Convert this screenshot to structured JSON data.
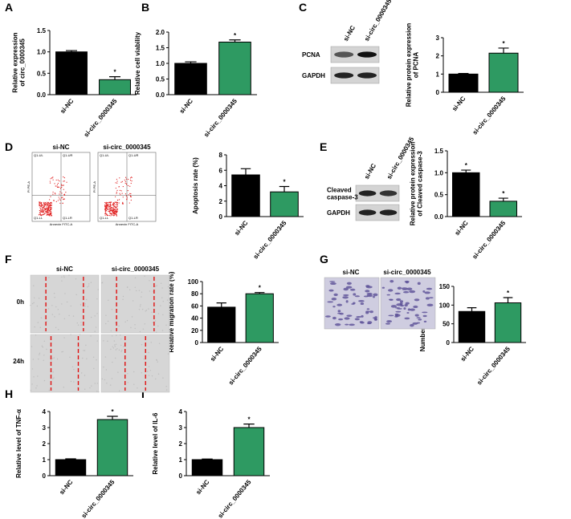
{
  "chart_data": [
    {
      "type": "bar",
      "panel": "A",
      "ylabel": [
        "Relative expression",
        "of circ_0000345"
      ],
      "categories": [
        "si-NC",
        "si-circ_0000345"
      ],
      "values": [
        1.0,
        0.35
      ],
      "errors": [
        0.03,
        0.07
      ],
      "colors": [
        "#000000",
        "#2e9a62"
      ],
      "significance": [
        null,
        "*"
      ],
      "ylim": [
        0,
        1.5
      ],
      "yticks": [
        {
          "value": 0,
          "label": "0.0"
        },
        0.5,
        {
          "value": 1,
          "label": "1.0"
        },
        1.5
      ]
    },
    {
      "type": "bar",
      "panel": "B",
      "ylabel": [
        "Relative cell viability"
      ],
      "categories": [
        "si-NC",
        "si-circ_0000345"
      ],
      "values": [
        1.0,
        1.68
      ],
      "errors": [
        0.05,
        0.07
      ],
      "colors": [
        "#000000",
        "#2e9a62"
      ],
      "significance": [
        null,
        "*"
      ],
      "ylim": [
        0,
        2
      ],
      "yticks": [
        {
          "value": 0,
          "label": "0.0"
        },
        0.5,
        {
          "value": 1,
          "label": "1.0"
        },
        1.5,
        {
          "value": 2,
          "label": "2.0"
        }
      ]
    },
    {
      "type": "bar",
      "panel": "C",
      "ylabel": [
        "Relative protein expression",
        "of PCNA"
      ],
      "categories": [
        "si-NC",
        "si-circ_0000345"
      ],
      "values": [
        1.0,
        2.15
      ],
      "errors": [
        0.03,
        0.28
      ],
      "colors": [
        "#000000",
        "#2e9a62"
      ],
      "significance": [
        null,
        "*"
      ],
      "ylim": [
        0,
        3
      ],
      "yticks": [
        0,
        1,
        2,
        3
      ]
    },
    {
      "type": "bar",
      "panel": "D",
      "ylabel": [
        "Apoptosis rate (%)"
      ],
      "categories": [
        "si-NC",
        "si-circ_0000345"
      ],
      "values": [
        5.4,
        3.2
      ],
      "errors": [
        0.8,
        0.7
      ],
      "colors": [
        "#000000",
        "#2e9a62"
      ],
      "significance": [
        null,
        "*"
      ],
      "ylim": [
        0,
        8
      ],
      "yticks": [
        0,
        2,
        4,
        6,
        8
      ]
    },
    {
      "type": "bar",
      "panel": "E",
      "ylabel": [
        "Relative protein expression",
        "of Cleaved caspase-3"
      ],
      "categories": [
        "si-NC",
        "si-circ_0000345"
      ],
      "values": [
        1.0,
        0.35
      ],
      "errors": [
        0.06,
        0.07
      ],
      "colors": [
        "#000000",
        "#2e9a62"
      ],
      "significance": [
        "*",
        "*"
      ],
      "ylim": [
        0,
        1.5
      ],
      "yticks": [
        {
          "value": 0,
          "label": "0.0"
        },
        0.5,
        {
          "value": 1,
          "label": "1.0"
        },
        1.5
      ]
    },
    {
      "type": "bar",
      "panel": "F",
      "ylabel": [
        "Relative migration rate (%)"
      ],
      "categories": [
        "si-NC",
        "si-circ_0000345"
      ],
      "values": [
        58,
        80
      ],
      "errors": [
        7,
        2
      ],
      "colors": [
        "#000000",
        "#2e9a62"
      ],
      "significance": [
        null,
        "*"
      ],
      "ylim": [
        0,
        100
      ],
      "yticks": [
        0,
        20,
        40,
        60,
        80,
        100
      ]
    },
    {
      "type": "bar",
      "panel": "G",
      "ylabel": [
        "Number of invaded cells"
      ],
      "categories": [
        "si-NC",
        "si-circ_0000345"
      ],
      "values": [
        83,
        106
      ],
      "errors": [
        10,
        14
      ],
      "colors": [
        "#000000",
        "#2e9a62"
      ],
      "significance": [
        null,
        "*"
      ],
      "ylim": [
        0,
        150
      ],
      "yticks": [
        0,
        50,
        100,
        150
      ]
    },
    {
      "type": "bar",
      "panel": "H",
      "ylabel": [
        "Relative level of TNF-α"
      ],
      "categories": [
        "si-NC",
        "si-circ_0000345"
      ],
      "values": [
        1.0,
        3.5
      ],
      "errors": [
        0.05,
        0.2
      ],
      "colors": [
        "#000000",
        "#2e9a62"
      ],
      "significance": [
        null,
        "*"
      ],
      "ylim": [
        0,
        4
      ],
      "yticks": [
        0,
        1,
        2,
        3,
        4
      ]
    },
    {
      "type": "bar",
      "panel": "I",
      "ylabel": [
        "Relative level of IL-6"
      ],
      "categories": [
        "si-NC",
        "si-circ_0000345"
      ],
      "values": [
        1.0,
        3.0
      ],
      "errors": [
        0.04,
        0.22
      ],
      "colors": [
        "#000000",
        "#2e9a62"
      ],
      "significance": [
        null,
        "*"
      ],
      "ylim": [
        0,
        4
      ],
      "yticks": [
        0,
        1,
        2,
        3,
        4
      ]
    }
  ],
  "images": {
    "C": {
      "columns": [
        "si-NC",
        "si-circ_0000345"
      ],
      "rows": [
        [
          "PCNA"
        ],
        [
          "GAPDH"
        ]
      ]
    },
    "D": {
      "titles": [
        "si-NC",
        "si-circ_0000345"
      ],
      "quadrants": [
        "Q1-UL",
        "Q1-UR",
        "Q1-LL",
        "Q1-LR"
      ],
      "x_label": "Annexin FITC-A",
      "y_label": "PI PE-A"
    },
    "E": {
      "columns": [
        "si-NC",
        "si-circ_0000345"
      ],
      "rows": [
        [
          "Cleaved",
          "caspase-3"
        ],
        [
          "GAPDH"
        ]
      ]
    },
    "F": {
      "columns": [
        "si-NC",
        "si-circ_0000345"
      ],
      "rows": [
        "0h",
        "24h"
      ]
    },
    "G": {
      "columns": [
        "si-NC",
        "si-circ_0000345"
      ]
    }
  }
}
